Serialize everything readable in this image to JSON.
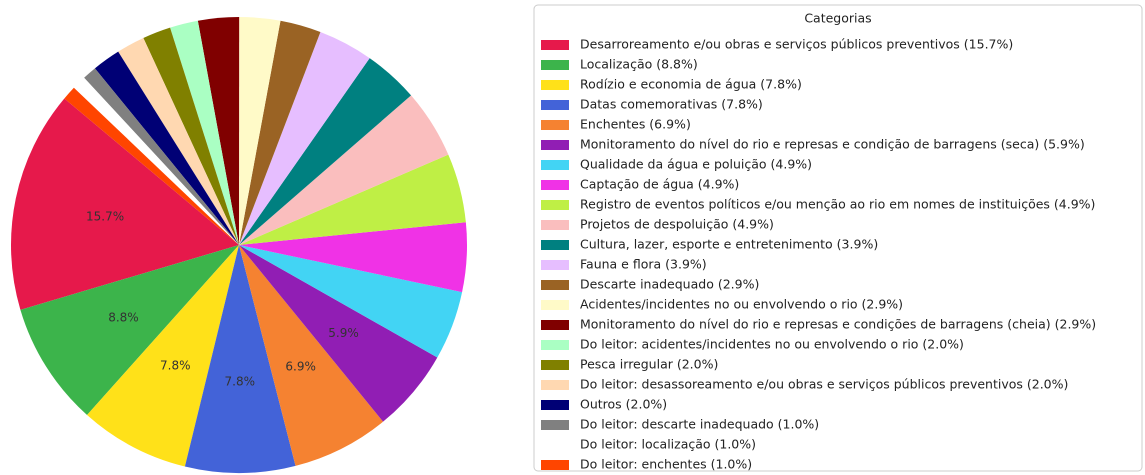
{
  "chart_data": {
    "type": "pie",
    "legend_title": "Categorias",
    "legend": "right",
    "categories": [
      "Desarroreamento e/ou obras e serviços públicos preventivos (15.7%)",
      "Localização (8.8%)",
      "Rodízio e economia de água (7.8%)",
      "Datas comemorativas (7.8%)",
      "Enchentes (6.9%)",
      "Monitoramento do nível do rio e represas e condição de barragens (seca) (5.9%)",
      "Qualidade da água e poluição (4.9%)",
      "Captação de água (4.9%)",
      "Registro de eventos políticos e/ou menção ao rio em nomes de instituições (4.9%)",
      "Projetos de despoluição (4.9%)",
      "Cultura, lazer, esporte e entretenimento (3.9%)",
      "Fauna e flora (3.9%)",
      "Descarte inadequado (2.9%)",
      "Acidentes/incidentes no ou envolvendo o rio (2.9%)",
      "Monitoramento do nível do rio e represas e condições de barragens (cheia) (2.9%)",
      "Do leitor: acidentes/incidentes no ou envolvendo o rio (2.0%)",
      "Pesca irregular (2.0%)",
      "Do leitor: desassoreamento e/ou obras e serviços públicos preventivos (2.0%)",
      "Outros (2.0%)",
      "Do leitor: descarte inadequado (1.0%)",
      "Do leitor: localização (1.0%)",
      "Do leitor: enchentes (1.0%)"
    ],
    "values": [
      15.7,
      8.8,
      7.8,
      7.8,
      6.9,
      5.9,
      4.9,
      4.9,
      4.9,
      4.9,
      3.9,
      3.9,
      2.9,
      2.9,
      2.9,
      2.0,
      2.0,
      2.0,
      2.0,
      1.0,
      1.0,
      1.0
    ],
    "value_labels": [
      "15.7%",
      "8.8%",
      "7.8%",
      "7.8%",
      "6.9%",
      "5.9%",
      null,
      null,
      null,
      null,
      null,
      null,
      null,
      null,
      null,
      null,
      null,
      null,
      null,
      null,
      null,
      null
    ],
    "colors": [
      "#e6194b",
      "#3cb44b",
      "#ffe119",
      "#4363d8",
      "#f58231",
      "#911eb4",
      "#42d4f4",
      "#f032e6",
      "#bfef45",
      "#fabebe",
      "#008080",
      "#e6beff",
      "#9a6324",
      "#fffac8",
      "#800000",
      "#aaffc3",
      "#808000",
      "#ffd8b1",
      "#000075",
      "#808080",
      "#ffffff",
      "#ff4500"
    ]
  }
}
